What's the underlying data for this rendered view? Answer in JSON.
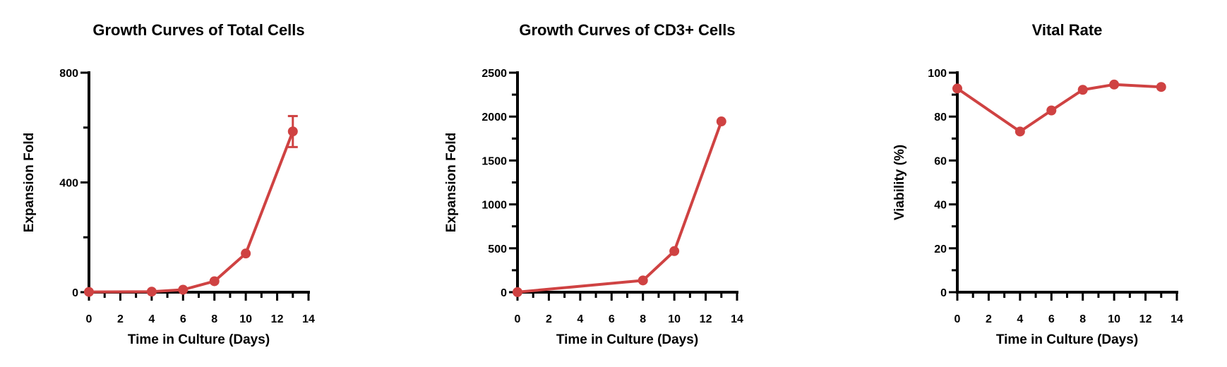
{
  "colors": {
    "series": "#cf4242",
    "axis": "#000000"
  },
  "chart_data": [
    {
      "type": "line",
      "title": "Growth Curves of Total Cells",
      "xlabel": "Time in Culture (Days)",
      "ylabel": "Expansion Fold",
      "xlim": [
        0,
        14
      ],
      "ylim": [
        0,
        800
      ],
      "xticks": [
        0,
        2,
        4,
        6,
        8,
        10,
        12,
        14
      ],
      "x_minor_step": 1,
      "yticks": [
        0,
        400,
        800
      ],
      "y_minor_step": 200,
      "grid": false,
      "x": [
        0,
        4,
        6,
        8,
        10,
        13
      ],
      "y": [
        1,
        2,
        9,
        40,
        141,
        586
      ],
      "error": [
        null,
        null,
        null,
        null,
        null,
        [
          529,
          642
        ]
      ]
    },
    {
      "type": "line",
      "title": "Growth Curves of CD3+ Cells",
      "xlabel": "Time in Culture (Days)",
      "ylabel": "Expansion Fold",
      "xlim": [
        0,
        14
      ],
      "ylim": [
        0,
        2500
      ],
      "xticks": [
        0,
        2,
        4,
        6,
        8,
        10,
        12,
        14
      ],
      "x_minor_step": 1,
      "yticks": [
        0,
        500,
        1000,
        1500,
        2000,
        2500
      ],
      "y_minor_step": 250,
      "grid": false,
      "x": [
        0,
        8,
        10,
        13
      ],
      "y": [
        1,
        134,
        468,
        1945
      ]
    },
    {
      "type": "line",
      "title": "Vital Rate",
      "xlabel": "Time in Culture (Days)",
      "ylabel": "Viability (%)",
      "xlim": [
        0,
        14
      ],
      "ylim": [
        0,
        100
      ],
      "xticks": [
        0,
        2,
        4,
        6,
        8,
        10,
        12,
        14
      ],
      "x_minor_step": 1,
      "yticks": [
        0,
        20,
        40,
        60,
        80,
        100
      ],
      "y_minor_step": 10,
      "grid": false,
      "x": [
        0,
        4,
        6,
        8,
        10,
        13
      ],
      "y": [
        92.8,
        73.2,
        82.8,
        92.2,
        94.6,
        93.5
      ]
    }
  ]
}
